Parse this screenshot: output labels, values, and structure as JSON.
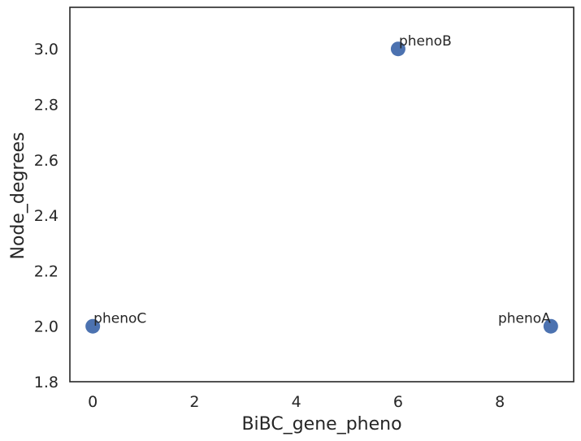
{
  "chart_data": {
    "type": "scatter",
    "xlabel": "BiBC_gene_pheno",
    "ylabel": "Node_degrees",
    "xlim": [
      -0.45,
      9.45
    ],
    "ylim": [
      1.8,
      3.15
    ],
    "xticks": [
      0,
      2,
      4,
      6,
      8
    ],
    "yticks": [
      1.8,
      2.0,
      2.2,
      2.4,
      2.6,
      2.8,
      3.0
    ],
    "grid": false,
    "marker_color": "#4c72b0",
    "points": [
      {
        "label": "phenoA",
        "x": 9,
        "y": 2.0
      },
      {
        "label": "phenoB",
        "x": 6,
        "y": 3.0
      },
      {
        "label": "phenoC",
        "x": 0,
        "y": 2.0
      }
    ]
  }
}
